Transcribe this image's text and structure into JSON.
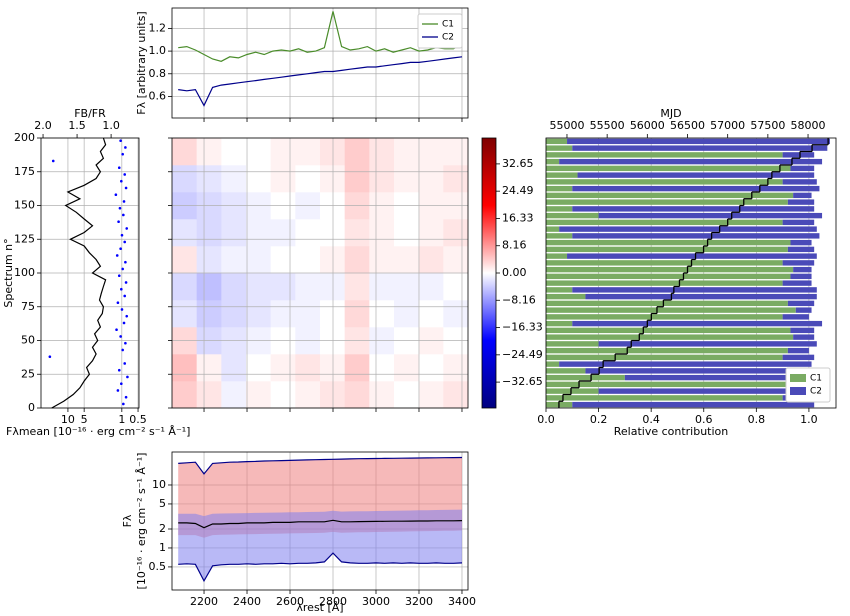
{
  "chart_data": [
    {
      "type": "line",
      "ylabel": "Fλ [arbitrary units]",
      "x": [
        2080,
        2120,
        2160,
        2200,
        2240,
        2280,
        2320,
        2360,
        2400,
        2440,
        2480,
        2520,
        2560,
        2600,
        2640,
        2680,
        2720,
        2760,
        2800,
        2840,
        2880,
        2920,
        2960,
        3000,
        3040,
        3080,
        3120,
        3160,
        3200,
        3240,
        3280,
        3320,
        3360,
        3400
      ],
      "series": [
        {
          "name": "C1",
          "color": "#4a8c2a",
          "values": [
            1.03,
            1.04,
            1.01,
            0.97,
            0.93,
            0.91,
            0.95,
            0.94,
            0.97,
            0.99,
            0.97,
            1.0,
            1.01,
            1.0,
            1.02,
            0.99,
            1.0,
            1.03,
            1.35,
            1.04,
            1.01,
            1.02,
            1.04,
            1.0,
            1.02,
            0.99,
            1.01,
            1.03,
            1.0,
            1.01,
            1.03,
            1.02,
            1.02,
            1.06
          ]
        },
        {
          "name": "C2",
          "color": "#00008b",
          "values": [
            0.66,
            0.65,
            0.66,
            0.52,
            0.68,
            0.7,
            0.71,
            0.72,
            0.73,
            0.74,
            0.75,
            0.76,
            0.77,
            0.78,
            0.79,
            0.8,
            0.81,
            0.82,
            0.82,
            0.83,
            0.84,
            0.85,
            0.86,
            0.86,
            0.87,
            0.88,
            0.89,
            0.9,
            0.9,
            0.91,
            0.92,
            0.93,
            0.94,
            0.95
          ]
        }
      ],
      "xlim": [
        2051,
        3428
      ],
      "ylim": [
        0.41,
        1.38
      ],
      "yticks": [
        0.6,
        0.8,
        {
          "value": 1,
          "label": "1.0"
        },
        1.2
      ],
      "grid": true,
      "legend": "upper right"
    },
    {
      "type": "profile",
      "ylabel": "Spectrum n°",
      "xlabel": "Fλmean [10⁻¹⁶ · erg cm⁻² s⁻¹ Å⁻¹]",
      "x2label": "FB/FR",
      "ylim": [
        0,
        200
      ],
      "yticks": [
        0,
        25,
        50,
        75,
        100,
        125,
        150,
        175,
        200
      ],
      "xlog": true,
      "xlim": [
        31.6,
        0.48
      ],
      "xticks": [
        10,
        5,
        1,
        0.5
      ],
      "x2lim": [
        2.03,
        0.59
      ],
      "x2ticks": [
        {
          "value": 2,
          "label": "2.0"
        },
        1.5,
        {
          "value": 1,
          "label": "1.0"
        }
      ],
      "series": [
        {
          "color": "#000000",
          "axis": "x",
          "y": [
            0,
            5,
            10,
            15,
            20,
            25,
            30,
            35,
            40,
            45,
            50,
            55,
            60,
            65,
            70,
            75,
            80,
            85,
            90,
            95,
            100,
            105,
            110,
            115,
            120,
            125,
            130,
            135,
            140,
            145,
            150,
            155,
            160,
            165,
            170,
            175,
            180,
            185,
            190,
            195,
            200
          ],
          "values": [
            20,
            12,
            8,
            6,
            5,
            4,
            4.5,
            3.5,
            3,
            3.5,
            2.8,
            3.2,
            2.5,
            2.8,
            2.3,
            2.2,
            2.6,
            2.4,
            2.2,
            2.0,
            3.5,
            2.5,
            3,
            4,
            5,
            9,
            5,
            3.5,
            5,
            7,
            11,
            6,
            10,
            5,
            3,
            2.5,
            3,
            2.2,
            2.5,
            2,
            2.2
          ]
        },
        {
          "color": "#0000ff",
          "axis": "x2",
          "y": [
            3,
            8,
            13,
            18,
            23,
            28,
            33,
            38,
            43,
            48,
            53,
            58,
            63,
            68,
            73,
            78,
            83,
            88,
            93,
            98,
            103,
            108,
            113,
            118,
            123,
            128,
            133,
            138,
            143,
            148,
            153,
            158,
            163,
            168,
            173,
            178,
            183,
            188,
            193,
            198
          ],
          "values": [
            0.82,
            0.78,
            0.9,
            0.85,
            0.76,
            0.88,
            0.8,
            1.9,
            0.83,
            0.79,
            0.86,
            0.92,
            0.81,
            0.77,
            0.84,
            0.9,
            0.8,
            0.85,
            0.78,
            0.88,
            0.83,
            0.79,
            0.91,
            0.86,
            0.8,
            0.84,
            0.77,
            0.89,
            0.82,
            0.87,
            0.81,
            0.93,
            0.78,
            0.85,
            0.8,
            0.88,
            1.85,
            0.83,
            0.79,
            0.86
          ]
        }
      ],
      "grid": true
    },
    {
      "type": "heatmap",
      "ylim": [
        0,
        200
      ],
      "zlim": [
        -40.4,
        40.4
      ],
      "z": [
        [
          4,
          2,
          -1,
          1,
          0,
          1,
          2,
          3,
          1,
          0,
          1,
          2
        ],
        [
          5,
          1,
          -2,
          0,
          1,
          2,
          1,
          4,
          0,
          1,
          0,
          1
        ],
        [
          3,
          -3,
          -2,
          -1,
          0,
          -1,
          0,
          2,
          -1,
          0,
          1,
          0
        ],
        [
          -2,
          -4,
          -3,
          -2,
          -1,
          -1,
          0,
          3,
          0,
          -1,
          0,
          -1
        ],
        [
          -3,
          -5,
          -3,
          -2,
          -2,
          -1,
          -1,
          2,
          -1,
          -1,
          -1,
          0
        ],
        [
          2,
          -2,
          -1,
          -1,
          0,
          0,
          1,
          3,
          1,
          1,
          2,
          1
        ],
        [
          -2,
          -3,
          -2,
          -1,
          -1,
          0,
          0,
          2,
          1,
          0,
          1,
          2
        ],
        [
          -4,
          -3,
          -2,
          -1,
          0,
          -1,
          0,
          3,
          1,
          0,
          1,
          1
        ],
        [
          -3,
          -2,
          -1,
          0,
          1,
          0,
          1,
          4,
          2,
          1,
          1,
          2
        ],
        [
          3,
          1,
          0,
          0,
          1,
          1,
          2,
          4,
          2,
          1,
          1,
          1
        ]
      ],
      "colorbar_ticks": [
        32.65,
        24.49,
        16.33,
        8.16,
        {
          "value": 0,
          "label": "0.00"
        },
        {
          "value": -8.16,
          "label": "−8.16"
        },
        {
          "value": -16.33,
          "label": "−16.33"
        },
        {
          "value": -24.49,
          "label": "−24.49"
        },
        {
          "value": -32.65,
          "label": "−32.65"
        }
      ]
    },
    {
      "type": "barh",
      "xlabel": "Relative contribution",
      "x2label": "MJD",
      "xlim": [
        0,
        1.103
      ],
      "xticks": [
        {
          "value": 0,
          "label": "0.0"
        },
        0.2,
        0.4,
        0.6,
        0.8,
        {
          "value": 1,
          "label": "1.0"
        }
      ],
      "x2lim": [
        54739,
        58348
      ],
      "x2ticks": [
        55000,
        55500,
        56000,
        56500,
        57000,
        57500,
        58000
      ],
      "ylim": [
        0,
        200
      ],
      "series": [
        {
          "name": "C1",
          "color": "#7aab63",
          "values": [
            0.1,
            0.9,
            0.2,
            0.95,
            0.3,
            0.15,
            0.05,
            0.9,
            0.92,
            0.2,
            0.94,
            0.93,
            0.1,
            0.9,
            0.95,
            0.92,
            0.15,
            0.1,
            0.9,
            0.93,
            0.94,
            0.9,
            0.08,
            0.92,
            0.93,
            0.1,
            0.05,
            0.9,
            0.2,
            0.1,
            0.92,
            0.94,
            0.1,
            0.9,
            0.12,
            0.93,
            0.05,
            0.9,
            0.1,
            0.08
          ]
        },
        {
          "name": "C2",
          "color": "#4a4ab8",
          "values": [
            0.92,
            0.1,
            0.82,
            0.05,
            0.75,
            0.9,
            0.96,
            0.12,
            0.08,
            0.83,
            0.08,
            0.09,
            0.95,
            0.1,
            0.06,
            0.1,
            0.88,
            0.93,
            0.11,
            0.08,
            0.07,
            0.12,
            0.95,
            0.1,
            0.08,
            0.94,
            0.98,
            0.12,
            0.85,
            0.92,
            0.1,
            0.07,
            0.94,
            0.13,
            0.9,
            0.09,
            1.0,
            0.12,
            0.97,
            1.0
          ]
        },
        {
          "color": "#000000",
          "axis": "x2",
          "values": [
            54900,
            54950,
            55050,
            55150,
            55300,
            55400,
            55450,
            55600,
            55750,
            55800,
            55900,
            55950,
            56000,
            56050,
            56120,
            56200,
            56300,
            56330,
            56400,
            56450,
            56500,
            56550,
            56600,
            56700,
            56750,
            56800,
            56900,
            57000,
            57050,
            57150,
            57200,
            57300,
            57400,
            57500,
            57550,
            57650,
            57800,
            57900,
            58050,
            58250
          ]
        }
      ],
      "grid": true,
      "legend": "lower right"
    },
    {
      "type": "area",
      "xlabel": "λrest [Å]",
      "ylabel": [
        "Fλ",
        "[10⁻¹⁶ · erg cm⁻² s⁻¹ Å⁻¹]"
      ],
      "x": [
        2080,
        2120,
        2160,
        2200,
        2240,
        2280,
        2320,
        2360,
        2400,
        2440,
        2480,
        2520,
        2560,
        2600,
        2640,
        2680,
        2720,
        2760,
        2800,
        2840,
        2880,
        2920,
        2960,
        3000,
        3040,
        3080,
        3120,
        3160,
        3200,
        3240,
        3280,
        3320,
        3360,
        3400
      ],
      "series": [
        {
          "color": "#00008b",
          "values": [
            22,
            22.5,
            23,
            15,
            22,
            22.5,
            23,
            23.2,
            23.5,
            23.7,
            24,
            24.2,
            24.4,
            24.6,
            24.8,
            25,
            25.2,
            25.4,
            25.6,
            25.8,
            26,
            26.1,
            26.2,
            26.3,
            26.4,
            26.5,
            26.6,
            26.7,
            26.8,
            26.9,
            27,
            27.1,
            27.2,
            27.3
          ],
          "fill_color": "#ee8080",
          "fill_lower": [
            1.6,
            1.6,
            1.6,
            1.45,
            1.6,
            1.62,
            1.63,
            1.64,
            1.65,
            1.66,
            1.67,
            1.68,
            1.69,
            1.7,
            1.71,
            1.72,
            1.73,
            1.74,
            1.8,
            1.75,
            1.76,
            1.77,
            1.78,
            1.79,
            1.8,
            1.81,
            1.82,
            1.83,
            1.84,
            1.85,
            1.86,
            1.87,
            1.88,
            1.9
          ]
        },
        {
          "color": "#000000",
          "values": [
            2.5,
            2.5,
            2.45,
            2.1,
            2.4,
            2.4,
            2.45,
            2.45,
            2.5,
            2.5,
            2.5,
            2.55,
            2.55,
            2.55,
            2.6,
            2.6,
            2.6,
            2.6,
            2.75,
            2.6,
            2.6,
            2.62,
            2.63,
            2.64,
            2.65,
            2.66,
            2.66,
            2.67,
            2.68,
            2.68,
            2.7,
            2.7,
            2.7,
            2.72
          ]
        },
        {
          "color": "#00008b",
          "values": [
            0.55,
            0.56,
            0.55,
            0.3,
            0.52,
            0.54,
            0.55,
            0.55,
            0.56,
            0.55,
            0.56,
            0.56,
            0.57,
            0.56,
            0.57,
            0.57,
            0.58,
            0.6,
            0.83,
            0.6,
            0.58,
            0.57,
            0.57,
            0.58,
            0.57,
            0.58,
            0.57,
            0.58,
            0.57,
            0.57,
            0.58,
            0.57,
            0.57,
            0.58
          ],
          "fill_color": "#8080ee",
          "fill_upper": [
            3.5,
            3.5,
            3.5,
            3.2,
            3.5,
            3.52,
            3.54,
            3.56,
            3.58,
            3.6,
            3.62,
            3.64,
            3.66,
            3.68,
            3.7,
            3.72,
            3.74,
            3.76,
            3.9,
            3.78,
            3.8,
            3.82,
            3.84,
            3.86,
            3.88,
            3.9,
            3.92,
            3.94,
            3.96,
            3.98,
            4.0,
            4.02,
            4.04,
            4.06
          ]
        }
      ],
      "xlim": [
        2051,
        3428
      ],
      "xticks": [
        2200,
        2400,
        2600,
        2800,
        3000,
        3200,
        3400
      ],
      "ylog": true,
      "ylim": [
        0.215,
        33.4
      ],
      "yticks": [
        0.5,
        1,
        2,
        5,
        10
      ],
      "grid": true
    }
  ]
}
